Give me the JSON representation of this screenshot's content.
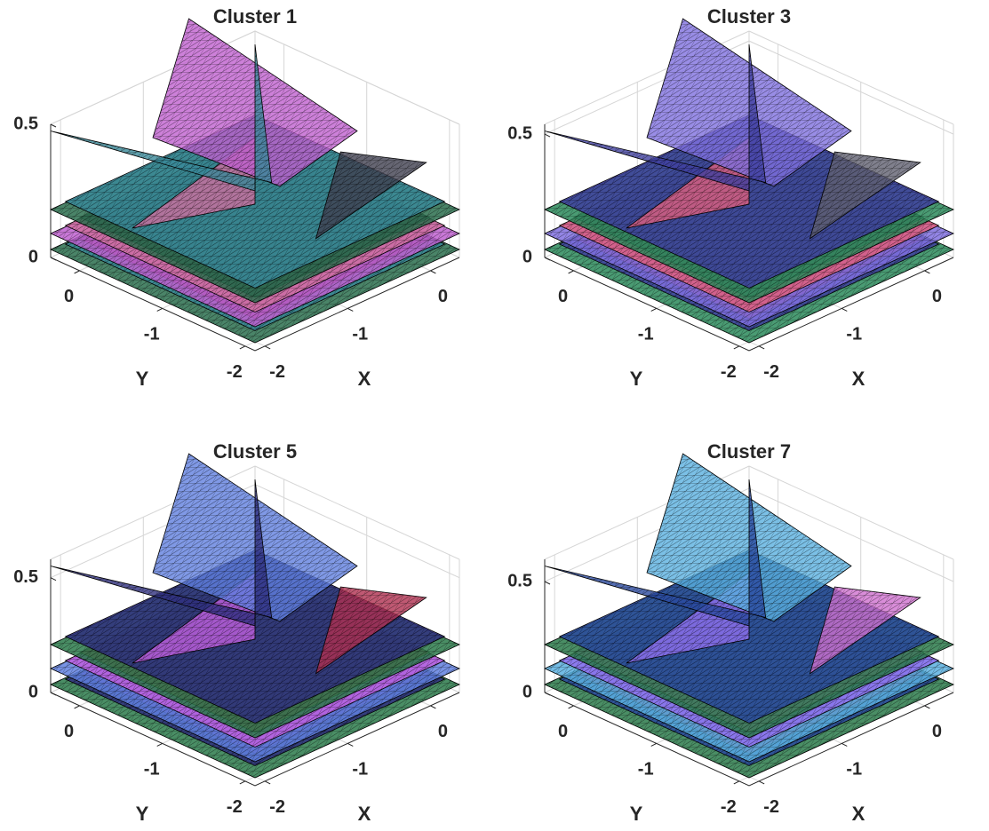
{
  "chart_data": [
    {
      "type": "surface",
      "title": "Cluster 1",
      "xlabel": "X",
      "ylabel": "Y",
      "xlim": [
        -2.12,
        0.35
      ],
      "ylim": [
        0.35,
        -2.12
      ],
      "zlim": [
        0,
        0.5
      ],
      "xticks": [
        -2,
        -1,
        0
      ],
      "yticks": [
        -2,
        -1,
        0
      ],
      "zticks": [
        0,
        0.5
      ],
      "grid": true,
      "surface_colors": [
        "#2a6e4e",
        "#3a8a9a",
        "#7a3a6a",
        "#c060d0",
        "#d070a0",
        "#404050"
      ]
    },
    {
      "type": "surface",
      "title": "Cluster 3",
      "xlabel": "X",
      "ylabel": "Y",
      "xlim": [
        -2.12,
        0.35
      ],
      "ylim": [
        0.35,
        -2.12
      ],
      "zlim": [
        0,
        0.54
      ],
      "xticks": [
        -2,
        -1,
        0
      ],
      "yticks": [
        -2,
        -1,
        0
      ],
      "zticks": [
        0,
        0.5
      ],
      "grid": true,
      "surface_colors": [
        "#2a8a5a",
        "#4040a0",
        "#a03a70",
        "#8070e0",
        "#e06080",
        "#606070"
      ]
    },
    {
      "type": "surface",
      "title": "Cluster 5",
      "xlabel": "X",
      "ylabel": "Y",
      "xlim": [
        -2.12,
        0.35
      ],
      "ylim": [
        0.35,
        -2.12
      ],
      "zlim": [
        0,
        0.58
      ],
      "xticks": [
        -2,
        -1,
        0
      ],
      "yticks": [
        -2,
        -1,
        0
      ],
      "zticks": [
        0,
        0.5
      ],
      "grid": true,
      "surface_colors": [
        "#2a7a4a",
        "#303080",
        "#6a3a9a",
        "#6080e0",
        "#c060e0",
        "#b03050"
      ]
    },
    {
      "type": "surface",
      "title": "Cluster 7",
      "xlabel": "X",
      "ylabel": "Y",
      "xlim": [
        -2.12,
        0.35
      ],
      "ylim": [
        0.35,
        -2.12
      ],
      "zlim": [
        0,
        0.6
      ],
      "xticks": [
        -2,
        -1,
        0
      ],
      "yticks": [
        -2,
        -1,
        0
      ],
      "zticks": [
        0,
        0.5
      ],
      "grid": true,
      "surface_colors": [
        "#2a7a4a",
        "#2a4aa0",
        "#8a2a6a",
        "#5ab0e0",
        "#9070f0",
        "#d070d0"
      ]
    }
  ]
}
